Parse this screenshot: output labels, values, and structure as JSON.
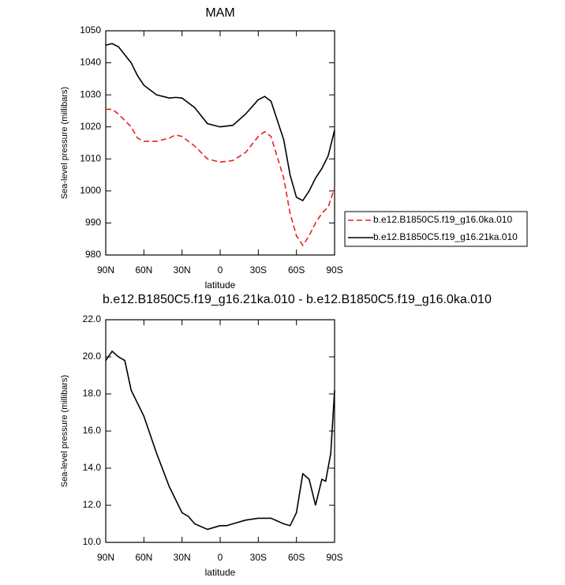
{
  "chart_data": [
    {
      "type": "line",
      "title": "MAM",
      "x_label": "latitude",
      "y_label": "Sea-level pressure (millibars)",
      "x": [
        90,
        85,
        80,
        70,
        65,
        60,
        50,
        40,
        35,
        30,
        20,
        10,
        0,
        -10,
        -20,
        -30,
        -35,
        -40,
        -50,
        -55,
        -60,
        -65,
        -70,
        -75,
        -80,
        -85,
        -90
      ],
      "series": [
        {
          "name": "b.e12.B1850C5.f19_g16.0ka.010",
          "color": "#e8231e",
          "linestyle": "dashed",
          "values": [
            1025.5,
            1025.5,
            1024,
            1020,
            1016.5,
            1015.5,
            1015.5,
            1016.5,
            1017.5,
            1017,
            1014,
            1010,
            1009,
            1009.5,
            1012,
            1017,
            1018.5,
            1017,
            1004,
            993,
            986,
            983,
            986,
            990,
            993,
            995,
            1001
          ]
        },
        {
          "name": "b.e12.B1850C5.f19_g16.21ka.010",
          "color": "#000000",
          "linestyle": "solid",
          "values": [
            1045.5,
            1046,
            1045,
            1040,
            1036,
            1033,
            1030,
            1029,
            1029.2,
            1029,
            1026,
            1021,
            1020,
            1020.5,
            1024,
            1028.5,
            1029.5,
            1028,
            1016,
            1005,
            998,
            997,
            1000,
            1004,
            1007,
            1011,
            1019
          ]
        }
      ],
      "xlim": [
        90,
        -90
      ],
      "xticks": [
        {
          "value": 90,
          "label": "90N"
        },
        {
          "value": 60,
          "label": "60N"
        },
        {
          "value": 30,
          "label": "30N"
        },
        0,
        {
          "value": -30,
          "label": "30S"
        },
        {
          "value": -60,
          "label": "60S"
        },
        {
          "value": -90,
          "label": "90S"
        }
      ],
      "ylim": [
        980,
        1050
      ],
      "yticks": [
        980,
        990,
        1000,
        1010,
        1020,
        1030,
        1040,
        1050
      ]
    },
    {
      "type": "line",
      "title": "b.e12.B1850C5.f19_g16.21ka.010 - b.e12.B1850C5.f19_g16.0ka.010",
      "x_label": "latitude",
      "y_label": "Sea-level pressure (millibars)",
      "x": [
        90,
        85,
        80,
        75,
        70,
        60,
        50,
        40,
        30,
        25,
        20,
        10,
        5,
        0,
        -5,
        -10,
        -20,
        -30,
        -40,
        -50,
        -55,
        -60,
        -65,
        -70,
        -75,
        -80,
        -83,
        -87,
        -90
      ],
      "color": "#000000",
      "values": [
        19.8,
        20.3,
        20.0,
        19.8,
        18.2,
        16.8,
        14.8,
        13.0,
        11.6,
        11.4,
        11.0,
        10.7,
        10.8,
        10.9,
        10.9,
        11.0,
        11.2,
        11.3,
        11.3,
        11.0,
        10.9,
        11.6,
        13.7,
        13.4,
        12.0,
        13.4,
        13.3,
        14.8,
        18.2
      ],
      "xlim": [
        90,
        -90
      ],
      "xticks": [
        {
          "value": 90,
          "label": "90N"
        },
        {
          "value": 60,
          "label": "60N"
        },
        {
          "value": 30,
          "label": "30N"
        },
        0,
        {
          "value": -30,
          "label": "30S"
        },
        {
          "value": -60,
          "label": "60S"
        },
        {
          "value": -90,
          "label": "90S"
        }
      ],
      "ylim": [
        10,
        22
      ],
      "yticks": [
        {
          "value": 10,
          "label": "10.0"
        },
        {
          "value": 12,
          "label": "12.0"
        },
        {
          "value": 14,
          "label": "14.0"
        },
        {
          "value": 16,
          "label": "16.0"
        },
        {
          "value": 18,
          "label": "18.0"
        },
        {
          "value": 20,
          "label": "20.0"
        },
        {
          "value": 22,
          "label": "22.0"
        }
      ]
    }
  ]
}
